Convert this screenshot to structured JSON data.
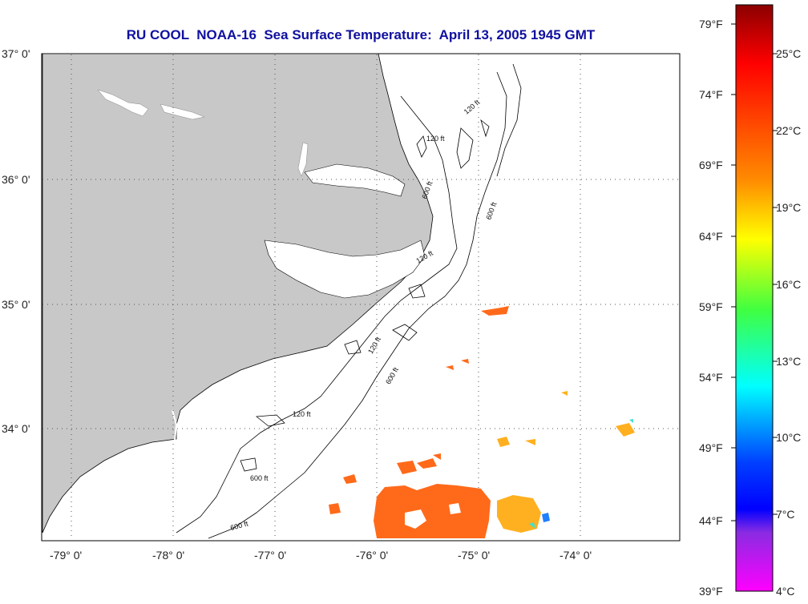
{
  "title": "RU COOL  NOAA-16  Sea Surface Temperature:  April 13, 2005 1945 GMT",
  "latitude_labels": [
    "37° 0'",
    "36° 0'",
    "35° 0'",
    "34° 0'"
  ],
  "longitude_labels": [
    "-79° 0'",
    "-78° 0'",
    "-77° 0'",
    "-76° 0'",
    "-75° 0'",
    "-74° 0'"
  ],
  "contour_labels": [
    "120 ft",
    "600 ft",
    "120 ft",
    "600 ft",
    "120 ft",
    "600 ft",
    "120 ft",
    "600 ft",
    "120 ft",
    "600 ft"
  ],
  "colorbar": {
    "fahrenheit_labels": [
      "79°F",
      "74°F",
      "69°F",
      "64°F",
      "59°F",
      "54°F",
      "49°F",
      "44°F",
      "39°F"
    ],
    "celsius_labels": [
      "25°C",
      "22°C",
      "19°C",
      "16°C",
      "13°C",
      "10°C",
      "7°C",
      "4°C"
    ]
  },
  "colors": {
    "land": "#c8c8c8",
    "title": "#1010a0",
    "sst_warm": "#ff6a1a",
    "sst_mid": "#ffb020"
  }
}
